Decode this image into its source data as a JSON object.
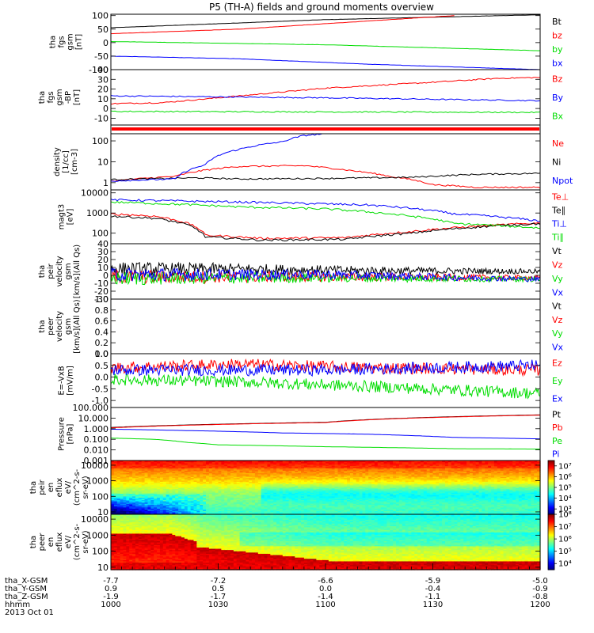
{
  "title": "P5 (TH-A) fields and ground moments overview",
  "colors": {
    "black": "#000000",
    "red": "#ff0000",
    "green": "#00dd00",
    "blue": "#0000ff",
    "orange": "#e87a00"
  },
  "chart_data": [
    {
      "type": "line",
      "scale": "linear",
      "ylabel": [
        "tha",
        "fgs",
        "gsm",
        "[nT]"
      ],
      "yticks": [
        -100,
        -50,
        0,
        50,
        100
      ],
      "ylim": [
        -100,
        105
      ],
      "series": [
        {
          "name": "Bt",
          "color": "#000000",
          "points": [
            [
              0,
              55
            ],
            [
              0.5,
              85
            ],
            [
              0.8,
              96
            ],
            [
              1,
              103
            ]
          ]
        },
        {
          "name": "bz",
          "color": "#ff0000",
          "points": [
            [
              0,
              33
            ],
            [
              0.3,
              50
            ],
            [
              0.6,
              80
            ],
            [
              0.8,
              100
            ]
          ]
        },
        {
          "name": "by",
          "color": "#00dd00",
          "points": [
            [
              0,
              4
            ],
            [
              0.5,
              -8
            ],
            [
              1,
              -30
            ]
          ]
        },
        {
          "name": "bx",
          "color": "#0000ff",
          "points": [
            [
              0,
              -50
            ],
            [
              0.3,
              -60
            ],
            [
              0.6,
              -80
            ],
            [
              1,
              -100
            ]
          ]
        }
      ]
    },
    {
      "type": "line",
      "scale": "linear",
      "ylabel": [
        "tha",
        "fgs",
        "gsm",
        "-BP",
        "[nT]"
      ],
      "yticks": [
        -10,
        0,
        10,
        20,
        30,
        40
      ],
      "ylim": [
        -17,
        40
      ],
      "series": [
        {
          "name": "Bz",
          "color": "#ff0000",
          "points": [
            [
              0,
              5
            ],
            [
              0.12,
              6
            ],
            [
              0.25,
              11
            ],
            [
              0.5,
              21
            ],
            [
              0.75,
              27
            ],
            [
              0.9,
              31
            ],
            [
              1,
              32
            ]
          ]
        },
        {
          "name": "By",
          "color": "#0000ff",
          "points": [
            [
              0,
              13
            ],
            [
              0.5,
              11
            ],
            [
              1,
              8
            ]
          ]
        },
        {
          "name": "Bx",
          "color": "#00dd00",
          "points": [
            [
              0,
              -3
            ],
            [
              1,
              -4
            ]
          ]
        }
      ]
    },
    {
      "type": "line",
      "scale": "log",
      "ylabel": [
        "density",
        "[1/cc]",
        "[cm-3]"
      ],
      "yticks": [
        1,
        10,
        100
      ],
      "ytick_labels": [
        "1",
        "10",
        "100"
      ],
      "ylim": [
        0.45,
        220
      ],
      "series": [
        {
          "name": "Ne",
          "color": "#ff0000",
          "points": [
            [
              0,
              1.2
            ],
            [
              0.15,
              2
            ],
            [
              0.22,
              4
            ],
            [
              0.3,
              6
            ],
            [
              0.45,
              6.5
            ],
            [
              0.55,
              4
            ],
            [
              0.65,
              2
            ],
            [
              0.75,
              0.8
            ],
            [
              0.85,
              0.6
            ],
            [
              1,
              0.6
            ]
          ]
        },
        {
          "name": "Ni",
          "color": "#000000",
          "points": [
            [
              0,
              1.4
            ],
            [
              0.2,
              1.7
            ],
            [
              0.3,
              1.5
            ],
            [
              0.5,
              1.6
            ],
            [
              0.7,
              1.8
            ],
            [
              0.85,
              2.5
            ],
            [
              1,
              2.8
            ]
          ]
        },
        {
          "name": "Npot",
          "color": "#0000ff",
          "points": [
            [
              0,
              1.2
            ],
            [
              0.15,
              1.5
            ],
            [
              0.22,
              7
            ],
            [
              0.3,
              40
            ],
            [
              0.4,
              90
            ],
            [
              0.45,
              180
            ],
            [
              0.5,
              220
            ]
          ]
        }
      ]
    },
    {
      "type": "line",
      "scale": "log",
      "ylabel": [
        "magt3",
        "[eV]"
      ],
      "yticks": [
        100,
        1000,
        10000
      ],
      "ytick_labels": [
        "100",
        "1000",
        "10000"
      ],
      "ylim": [
        30,
        14000
      ],
      "series": [
        {
          "name": "Te⊥",
          "color": "#ff0000",
          "points": [
            [
              0,
              900
            ],
            [
              0.1,
              700
            ],
            [
              0.18,
              300
            ],
            [
              0.22,
              80
            ],
            [
              0.35,
              55
            ],
            [
              0.55,
              60
            ],
            [
              0.7,
              120
            ],
            [
              0.85,
              220
            ],
            [
              1,
              320
            ]
          ]
        },
        {
          "name": "Te∥",
          "color": "#000000",
          "points": [
            [
              0,
              700
            ],
            [
              0.1,
              550
            ],
            [
              0.18,
              250
            ],
            [
              0.22,
              65
            ],
            [
              0.35,
              45
            ],
            [
              0.55,
              50
            ],
            [
              0.7,
              100
            ],
            [
              0.85,
              200
            ],
            [
              1,
              300
            ]
          ]
        },
        {
          "name": "Ti⊥",
          "color": "#0000ff",
          "points": [
            [
              0,
              4500
            ],
            [
              0.3,
              3500
            ],
            [
              0.6,
              2500
            ],
            [
              0.8,
              900
            ],
            [
              1,
              400
            ]
          ]
        },
        {
          "name": "Ti∥",
          "color": "#00dd00",
          "points": [
            [
              0,
              3500
            ],
            [
              0.3,
              2000
            ],
            [
              0.5,
              1600
            ],
            [
              0.65,
              900
            ],
            [
              0.8,
              300
            ],
            [
              1,
              180
            ]
          ]
        }
      ]
    },
    {
      "type": "line",
      "scale": "linear",
      "ylabel": [
        "tha",
        "peir",
        "velocity",
        "gsm",
        "[km/s](All Qs)"
      ],
      "yticks": [
        -30,
        -20,
        -10,
        0,
        10,
        20,
        30,
        40
      ],
      "ylim": [
        -30,
        40
      ],
      "series": [
        {
          "name": "Vt",
          "color": "#000000",
          "points": [
            [
              0,
              8
            ],
            [
              0.3,
              8
            ],
            [
              0.6,
              6
            ],
            [
              1,
              5
            ]
          ]
        },
        {
          "name": "Vz",
          "color": "#ff0000",
          "points": [
            [
              0,
              -2
            ],
            [
              0.5,
              -2
            ],
            [
              1,
              -3
            ]
          ]
        },
        {
          "name": "Vy",
          "color": "#00dd00",
          "points": [
            [
              0,
              -4
            ],
            [
              0.5,
              -3
            ],
            [
              1,
              -5
            ]
          ]
        },
        {
          "name": "Vx",
          "color": "#0000ff",
          "points": [
            [
              0,
              1
            ],
            [
              0.5,
              1
            ],
            [
              1,
              -5
            ]
          ]
        }
      ]
    },
    {
      "type": "line",
      "scale": "linear",
      "ylabel": [
        "tha",
        "peer",
        "velocity",
        "gsm",
        "[km/s](All Qs)"
      ],
      "yticks": [
        0.0,
        0.2,
        0.4,
        0.6,
        0.8,
        1.0
      ],
      "ytick_labels": [
        "0.0",
        "0.2",
        "0.4",
        "0.6",
        "0.8",
        "1.0"
      ],
      "ylim": [
        0,
        1
      ],
      "series": [
        {
          "name": "Vt",
          "color": "#000000",
          "points": []
        },
        {
          "name": "Vz",
          "color": "#ff0000",
          "points": []
        },
        {
          "name": "Vy",
          "color": "#00dd00",
          "points": []
        },
        {
          "name": "Vx",
          "color": "#0000ff",
          "points": []
        }
      ]
    },
    {
      "type": "line",
      "scale": "linear",
      "ylabel": [
        "E=-VxB",
        "[mV/m]"
      ],
      "yticks": [
        -1.0,
        -0.5,
        0.0,
        0.5,
        1.0
      ],
      "ytick_labels": [
        "-1.0",
        "-0.5",
        "0.0",
        "0.5",
        "1.0"
      ],
      "ylim": [
        -1.3,
        1.0
      ],
      "series": [
        {
          "name": "Ez",
          "color": "#ff0000",
          "points": [
            [
              0,
              0.4
            ],
            [
              0.3,
              0.55
            ],
            [
              0.6,
              0.4
            ],
            [
              1,
              0.3
            ]
          ]
        },
        {
          "name": "Ey",
          "color": "#00dd00",
          "points": [
            [
              0,
              -0.1
            ],
            [
              0.3,
              -0.2
            ],
            [
              0.6,
              -0.4
            ],
            [
              1,
              -0.7
            ]
          ]
        },
        {
          "name": "Ex",
          "color": "#0000ff",
          "points": [
            [
              0,
              0.3
            ],
            [
              0.5,
              0.3
            ],
            [
              1,
              0.5
            ]
          ]
        }
      ]
    },
    {
      "type": "line",
      "scale": "log",
      "ylabel": [
        "Pressure",
        "[nPa]"
      ],
      "yticks": [
        0.001,
        0.01,
        0.1,
        1,
        10,
        100
      ],
      "ytick_labels": [
        "0.001",
        "0.010",
        "0.100",
        "1.000",
        "10.000",
        "100.000"
      ],
      "ylim": [
        0.001,
        100
      ],
      "series": [
        {
          "name": "Pt",
          "color": "#000000",
          "points": [
            [
              0,
              1.3
            ],
            [
              0.5,
              4
            ],
            [
              1,
              20
            ]
          ]
        },
        {
          "name": "Pb",
          "color": "#ff0000",
          "points": [
            [
              0,
              1.2
            ],
            [
              0.5,
              3.8
            ],
            [
              1,
              19
            ]
          ]
        },
        {
          "name": "Pe",
          "color": "#00dd00",
          "points": [
            [
              0,
              0.13
            ],
            [
              0.1,
              0.1
            ],
            [
              0.18,
              0.05
            ],
            [
              0.25,
              0.03
            ],
            [
              0.5,
              0.02
            ],
            [
              0.8,
              0.013
            ],
            [
              1,
              0.012
            ]
          ]
        },
        {
          "name": "Pi",
          "color": "#0000ff",
          "points": [
            [
              0,
              0.9
            ],
            [
              0.15,
              0.7
            ],
            [
              0.4,
              0.4
            ],
            [
              0.6,
              0.3
            ],
            [
              0.8,
              0.15
            ],
            [
              1,
              0.11
            ]
          ]
        }
      ]
    },
    {
      "type": "heatmap",
      "scale": "log",
      "ylabel": [
        "tha",
        "peir",
        "en",
        "eflux",
        "eV/",
        "(cm^2-s-",
        "sr-eV)"
      ],
      "yticks": [
        10,
        100,
        1000,
        10000
      ],
      "ytick_labels": [
        "10",
        "100",
        "1000",
        "10000"
      ],
      "ylim": [
        7,
        20000
      ],
      "colorbar": {
        "ticks": [
          3,
          4,
          5,
          6,
          7
        ],
        "labels": [
          "10³",
          "10⁴",
          "10⁵",
          "10⁶",
          "10⁷"
        ],
        "range": [
          2.5,
          7.5
        ]
      }
    },
    {
      "type": "heatmap",
      "scale": "log",
      "ylabel": [
        "tha",
        "peer",
        "en",
        "eflux",
        "eV/",
        "(cm^2-s-",
        "sr-eV)"
      ],
      "yticks": [
        10,
        100,
        1000,
        10000
      ],
      "ytick_labels": [
        "10",
        "100",
        "1000",
        "10000"
      ],
      "ylim": [
        7,
        20000
      ],
      "colorbar": {
        "ticks": [
          4,
          5,
          6,
          7,
          8
        ],
        "labels": [
          "10⁴",
          "10⁵",
          "10⁶",
          "10⁷",
          "10⁸"
        ],
        "range": [
          3.5,
          8.0
        ]
      }
    }
  ],
  "x_axis": {
    "rows": [
      {
        "label": "tha_X-GSM",
        "values": [
          "-7.7",
          "-7.2",
          "-6.6",
          "-5.9",
          "-5.0"
        ]
      },
      {
        "label": "tha_Y-GSM",
        "values": [
          "0.9",
          "0.5",
          "0.0",
          "-0.4",
          "-0.9"
        ]
      },
      {
        "label": "tha_Z-GSM",
        "values": [
          "-1.9",
          "-1.7",
          "-1.4",
          "-1.1",
          "-0.8"
        ]
      },
      {
        "label": "hhmm",
        "values": [
          "1000",
          "1030",
          "1100",
          "1130",
          "1200"
        ]
      }
    ],
    "date": "2013 Oct 01"
  }
}
